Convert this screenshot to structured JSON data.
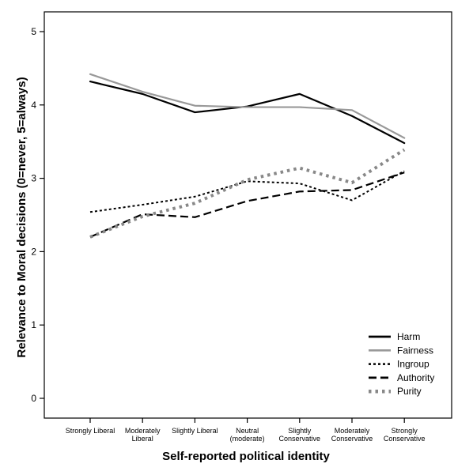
{
  "chart_data": {
    "type": "line",
    "title": "",
    "xlabel": "Self-reported political identity",
    "ylabel": "Relevance to Moral decisions (0=never, 5=always)",
    "categories": [
      [
        "Strongly Liberal"
      ],
      [
        "Moderately",
        "Liberal"
      ],
      [
        "Slightly Liberal"
      ],
      [
        "Neutral",
        "(moderate)"
      ],
      [
        "Slightly",
        "Conservative"
      ],
      [
        "Moderately",
        "Conservative"
      ],
      [
        "Strongly",
        "Conservative"
      ]
    ],
    "ylim": [
      0,
      5
    ],
    "yticks": [
      0,
      1,
      2,
      3,
      4,
      5
    ],
    "grid": false,
    "legend_position": "bottom-right",
    "series": [
      {
        "name": "Harm",
        "color": "#000000",
        "style": "solid",
        "values": [
          4.32,
          4.15,
          3.9,
          3.98,
          4.15,
          3.85,
          3.48
        ]
      },
      {
        "name": "Fairness",
        "color": "#999999",
        "style": "solid",
        "values": [
          4.42,
          4.18,
          3.99,
          3.97,
          3.97,
          3.93,
          3.55
        ]
      },
      {
        "name": "Ingroup",
        "color": "#000000",
        "style": "dotted",
        "values": [
          2.54,
          2.64,
          2.75,
          2.96,
          2.93,
          2.7,
          3.1
        ]
      },
      {
        "name": "Authority",
        "color": "#000000",
        "style": "dashed",
        "values": [
          2.2,
          2.51,
          2.47,
          2.69,
          2.82,
          2.84,
          3.08
        ]
      },
      {
        "name": "Purity",
        "color": "#888888",
        "style": "dotted-thick",
        "values": [
          2.2,
          2.48,
          2.66,
          2.98,
          3.14,
          2.94,
          3.39
        ]
      }
    ]
  }
}
